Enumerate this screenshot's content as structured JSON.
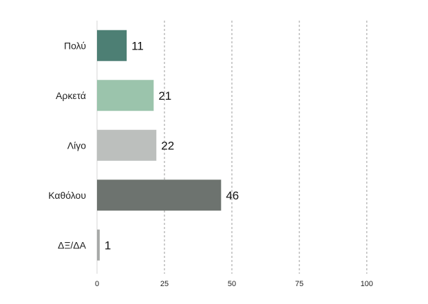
{
  "chart_data": {
    "type": "bar",
    "orientation": "horizontal",
    "categories": [
      "Πολύ",
      "Αρκετά",
      "Λίγο",
      "Καθόλου",
      "ΔΞ/ΔΑ"
    ],
    "values": [
      11,
      21,
      22,
      46,
      1
    ],
    "data_labels": [
      "11",
      "21",
      "22",
      "46",
      "1"
    ],
    "colors": [
      "#4d7f74",
      "#9bc4ac",
      "#bcbfbd",
      "#6d736f",
      "#a7a9a8"
    ],
    "xlim": [
      0,
      100
    ],
    "xticks": [
      0,
      25,
      50,
      75,
      100
    ],
    "xtick_labels": [
      "0",
      "25",
      "50",
      "75",
      "100"
    ],
    "grid": "vertical dashed",
    "legend": "none"
  }
}
